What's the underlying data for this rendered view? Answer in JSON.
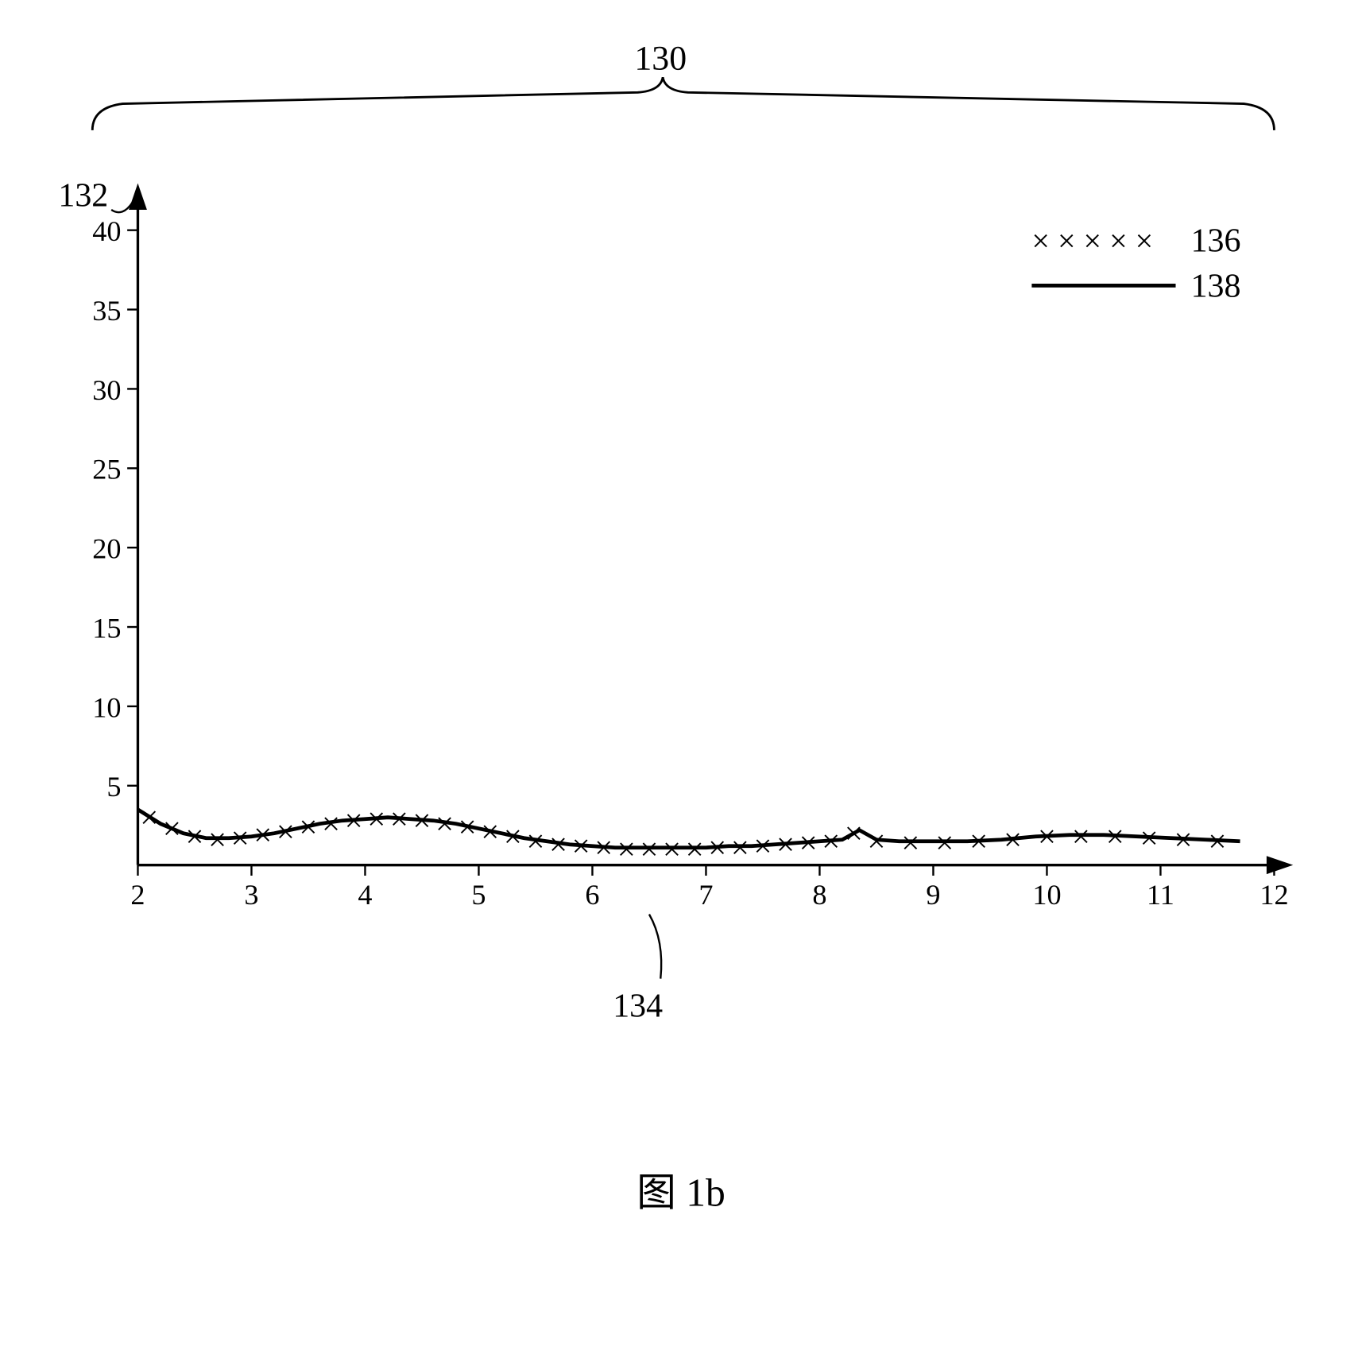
{
  "chart": {
    "type": "line",
    "xlim": [
      2,
      12
    ],
    "ylim": [
      0,
      42
    ],
    "xticks": [
      2,
      3,
      4,
      5,
      6,
      7,
      8,
      9,
      10,
      11,
      12
    ],
    "yticks": [
      5,
      10,
      15,
      20,
      25,
      30,
      35,
      40
    ],
    "xtick_labels": [
      "2",
      "3",
      "4",
      "5",
      "6",
      "7",
      "8",
      "9",
      "10",
      "11",
      "12"
    ],
    "ytick_labels": [
      "5",
      "10",
      "15",
      "20",
      "25",
      "30",
      "35",
      "40"
    ],
    "background_color": "#ffffff",
    "axis_color": "#000000",
    "axis_width": 3.5,
    "tick_fontsize": 38,
    "series": {
      "line_138": {
        "type": "solid_line",
        "color": "#000000",
        "line_width": 5,
        "data": [
          {
            "x": 2.0,
            "y": 3.5
          },
          {
            "x": 2.2,
            "y": 2.6
          },
          {
            "x": 2.4,
            "y": 2.0
          },
          {
            "x": 2.6,
            "y": 1.7
          },
          {
            "x": 2.8,
            "y": 1.7
          },
          {
            "x": 3.0,
            "y": 1.8
          },
          {
            "x": 3.2,
            "y": 2.0
          },
          {
            "x": 3.4,
            "y": 2.3
          },
          {
            "x": 3.6,
            "y": 2.6
          },
          {
            "x": 3.8,
            "y": 2.8
          },
          {
            "x": 4.0,
            "y": 2.9
          },
          {
            "x": 4.2,
            "y": 3.0
          },
          {
            "x": 4.4,
            "y": 2.9
          },
          {
            "x": 4.6,
            "y": 2.8
          },
          {
            "x": 4.8,
            "y": 2.6
          },
          {
            "x": 5.0,
            "y": 2.3
          },
          {
            "x": 5.2,
            "y": 2.0
          },
          {
            "x": 5.4,
            "y": 1.7
          },
          {
            "x": 5.6,
            "y": 1.5
          },
          {
            "x": 5.8,
            "y": 1.3
          },
          {
            "x": 6.0,
            "y": 1.2
          },
          {
            "x": 6.2,
            "y": 1.1
          },
          {
            "x": 6.4,
            "y": 1.1
          },
          {
            "x": 6.6,
            "y": 1.1
          },
          {
            "x": 6.8,
            "y": 1.1
          },
          {
            "x": 7.0,
            "y": 1.1
          },
          {
            "x": 7.2,
            "y": 1.2
          },
          {
            "x": 7.4,
            "y": 1.2
          },
          {
            "x": 7.6,
            "y": 1.3
          },
          {
            "x": 7.8,
            "y": 1.4
          },
          {
            "x": 8.0,
            "y": 1.5
          },
          {
            "x": 8.2,
            "y": 1.6
          },
          {
            "x": 8.35,
            "y": 2.2
          },
          {
            "x": 8.5,
            "y": 1.6
          },
          {
            "x": 8.7,
            "y": 1.5
          },
          {
            "x": 9.0,
            "y": 1.5
          },
          {
            "x": 9.3,
            "y": 1.5
          },
          {
            "x": 9.6,
            "y": 1.6
          },
          {
            "x": 9.9,
            "y": 1.8
          },
          {
            "x": 10.2,
            "y": 1.9
          },
          {
            "x": 10.5,
            "y": 1.9
          },
          {
            "x": 10.8,
            "y": 1.8
          },
          {
            "x": 11.1,
            "y": 1.7
          },
          {
            "x": 11.4,
            "y": 1.6
          },
          {
            "x": 11.7,
            "y": 1.5
          }
        ]
      },
      "markers_136": {
        "type": "x_markers",
        "color": "#000000",
        "marker_size": 16,
        "data": [
          {
            "x": 2.1,
            "y": 3.0
          },
          {
            "x": 2.3,
            "y": 2.3
          },
          {
            "x": 2.5,
            "y": 1.8
          },
          {
            "x": 2.7,
            "y": 1.6
          },
          {
            "x": 2.9,
            "y": 1.7
          },
          {
            "x": 3.1,
            "y": 1.9
          },
          {
            "x": 3.3,
            "y": 2.1
          },
          {
            "x": 3.5,
            "y": 2.4
          },
          {
            "x": 3.7,
            "y": 2.6
          },
          {
            "x": 3.9,
            "y": 2.8
          },
          {
            "x": 4.1,
            "y": 2.9
          },
          {
            "x": 4.3,
            "y": 2.9
          },
          {
            "x": 4.5,
            "y": 2.8
          },
          {
            "x": 4.7,
            "y": 2.6
          },
          {
            "x": 4.9,
            "y": 2.4
          },
          {
            "x": 5.1,
            "y": 2.1
          },
          {
            "x": 5.3,
            "y": 1.8
          },
          {
            "x": 5.5,
            "y": 1.5
          },
          {
            "x": 5.7,
            "y": 1.3
          },
          {
            "x": 5.9,
            "y": 1.2
          },
          {
            "x": 6.1,
            "y": 1.1
          },
          {
            "x": 6.3,
            "y": 1.0
          },
          {
            "x": 6.5,
            "y": 1.0
          },
          {
            "x": 6.7,
            "y": 1.0
          },
          {
            "x": 6.9,
            "y": 1.0
          },
          {
            "x": 7.1,
            "y": 1.1
          },
          {
            "x": 7.3,
            "y": 1.1
          },
          {
            "x": 7.5,
            "y": 1.2
          },
          {
            "x": 7.7,
            "y": 1.3
          },
          {
            "x": 7.9,
            "y": 1.4
          },
          {
            "x": 8.1,
            "y": 1.5
          },
          {
            "x": 8.3,
            "y": 2.0
          },
          {
            "x": 8.5,
            "y": 1.5
          },
          {
            "x": 8.8,
            "y": 1.4
          },
          {
            "x": 9.1,
            "y": 1.4
          },
          {
            "x": 9.4,
            "y": 1.5
          },
          {
            "x": 9.7,
            "y": 1.6
          },
          {
            "x": 10.0,
            "y": 1.8
          },
          {
            "x": 10.3,
            "y": 1.8
          },
          {
            "x": 10.6,
            "y": 1.8
          },
          {
            "x": 10.9,
            "y": 1.7
          },
          {
            "x": 11.2,
            "y": 1.6
          },
          {
            "x": 11.5,
            "y": 1.5
          }
        ]
      }
    },
    "legend": {
      "position": "top-right",
      "fontsize": 42,
      "items": [
        {
          "symbol": "xxxxx",
          "label": "136"
        },
        {
          "symbol": "line",
          "label": "138"
        }
      ]
    },
    "annotations": {
      "top_brace": "130",
      "y_axis": "132",
      "x_axis": "134",
      "fontsize": 42
    }
  },
  "caption": "图  1b"
}
